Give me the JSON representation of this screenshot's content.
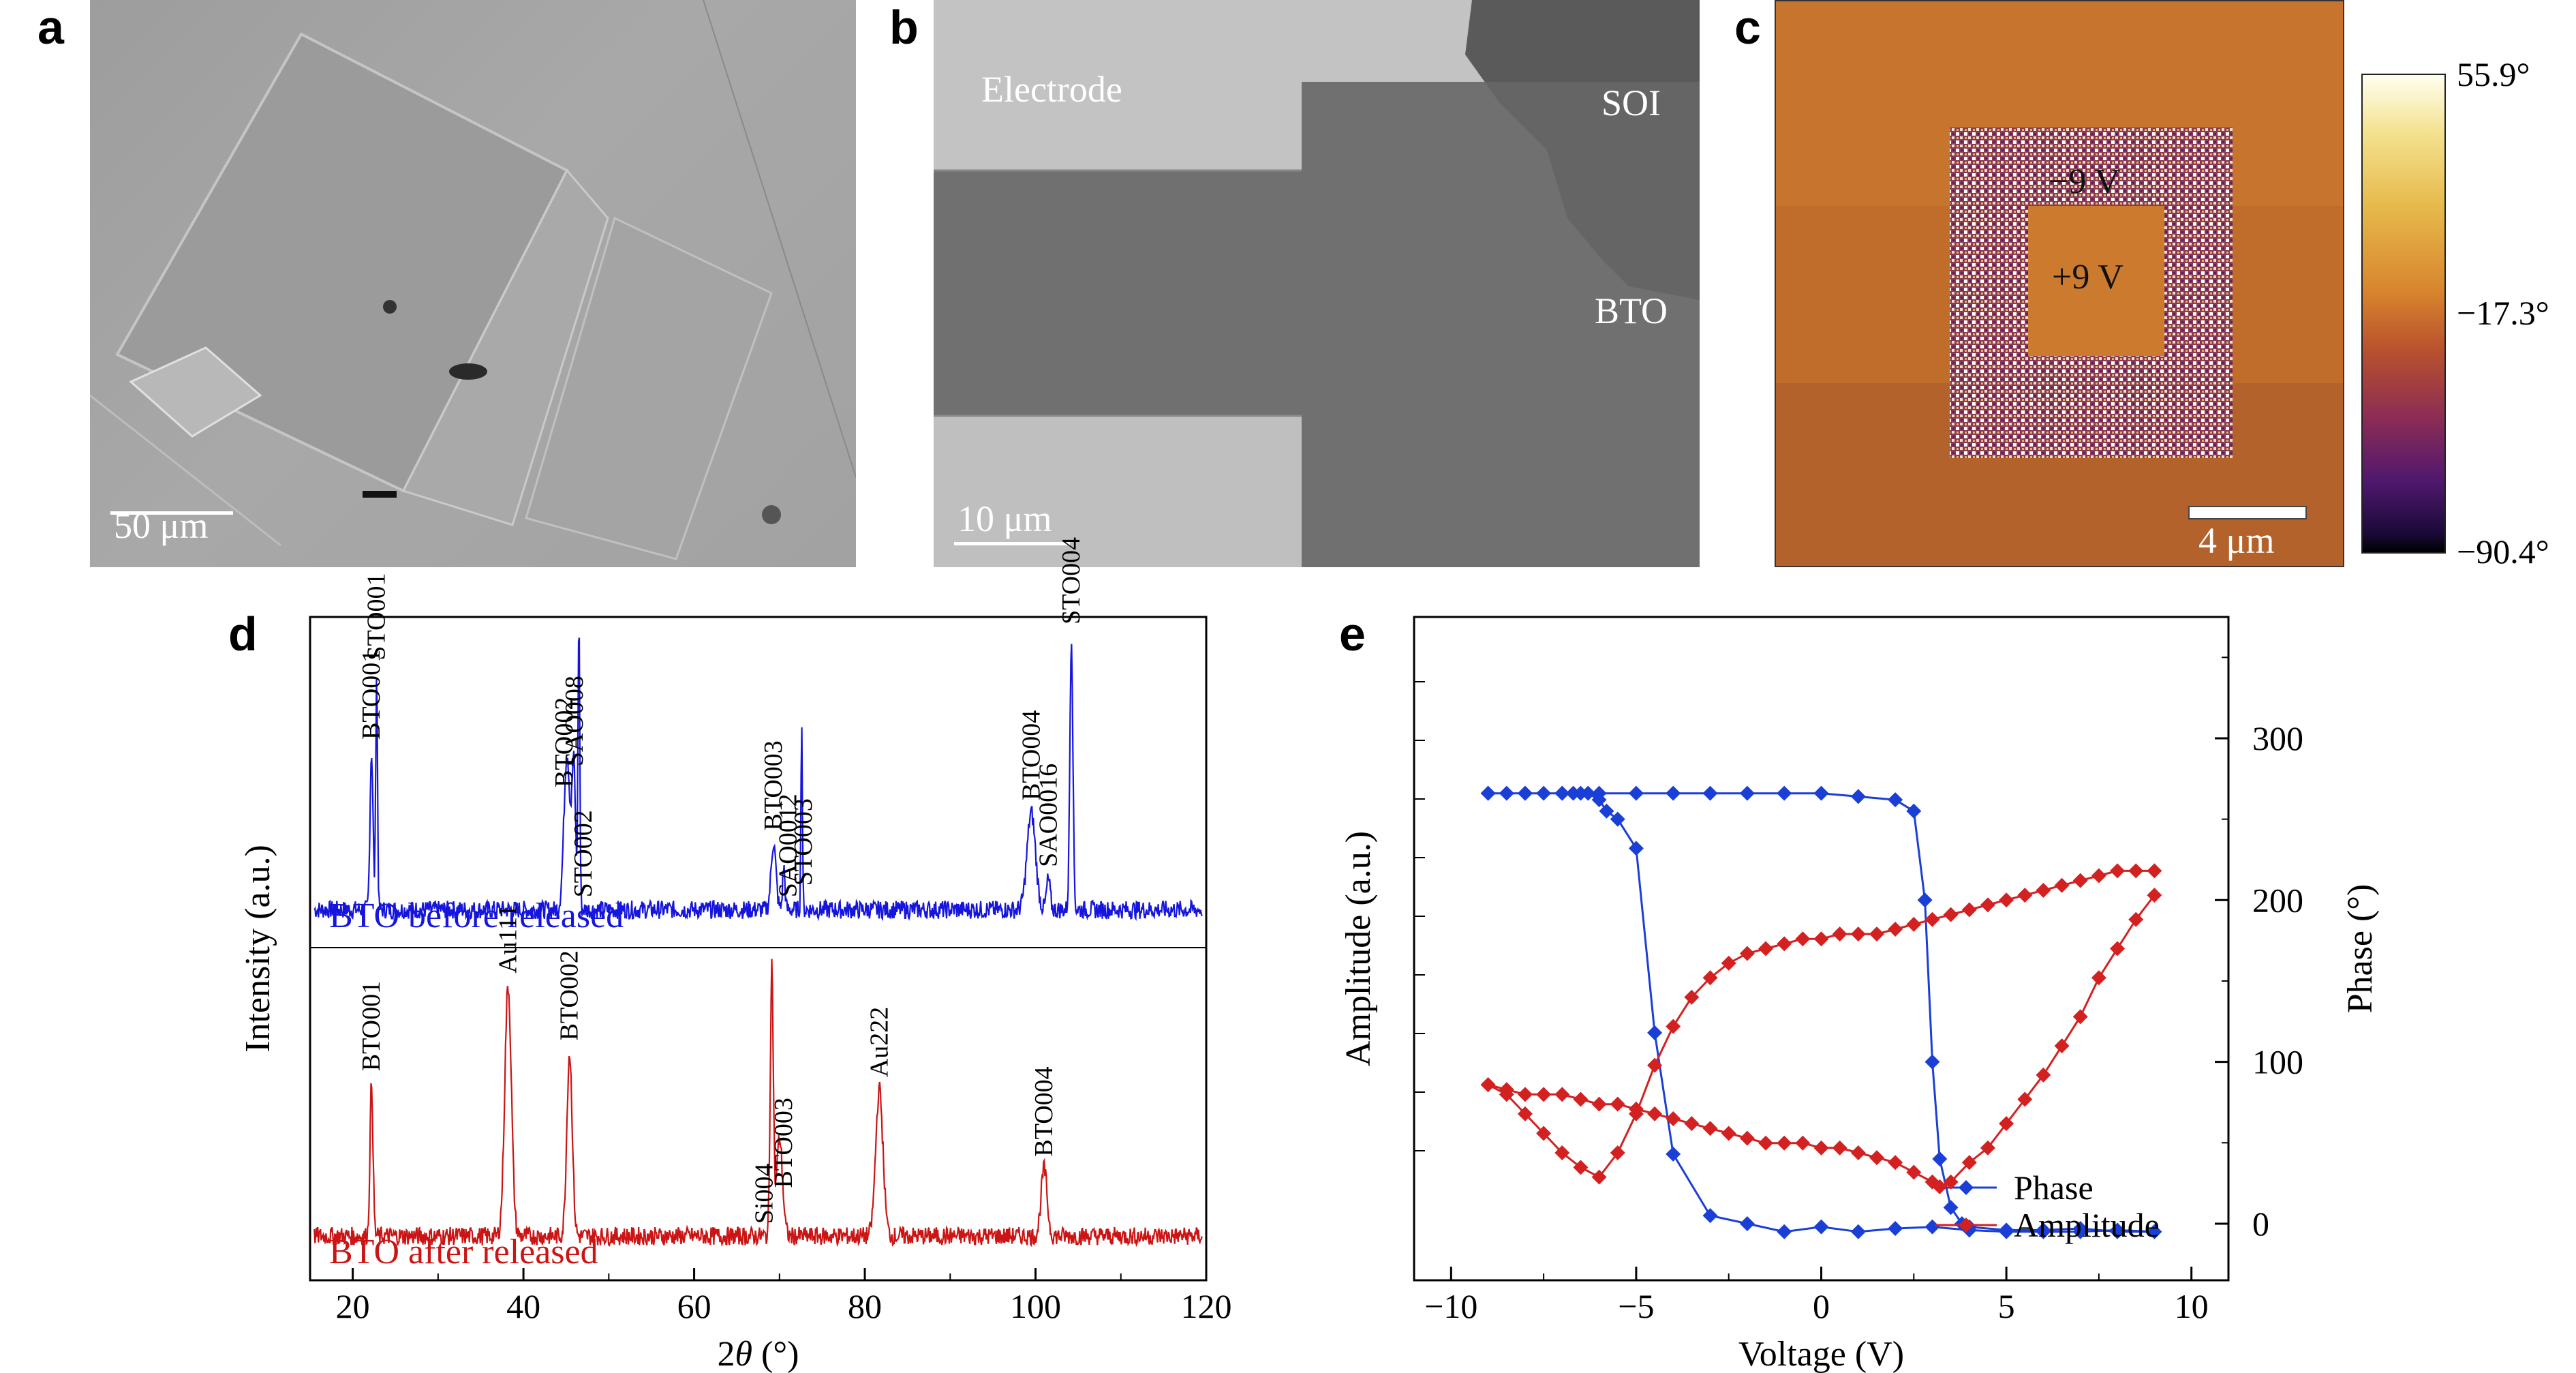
{
  "panel_letters": {
    "a": "a",
    "b": "b",
    "c": "c",
    "d": "d",
    "e": "e"
  },
  "panel_a": {
    "scale_bar": "50 μm"
  },
  "panel_b": {
    "electrode": "Electrode",
    "soi": "SOI",
    "bto": "BTO",
    "scale_bar": "10 μm"
  },
  "panel_c": {
    "neg_label": "−9 V",
    "pos_label": "+9 V",
    "scale_bar": "4 μm",
    "colorbar": {
      "max": "55.9°",
      "mid": "−17.3°",
      "min": "−90.4°"
    }
  },
  "chart_data": [
    {
      "type": "line",
      "panel": "d",
      "xlabel_prefix": "2",
      "xlabel_var": "θ",
      "xlabel_unit": " (°)",
      "ylabel": "Intensity (a.u.)",
      "xlim": [
        15,
        120
      ],
      "xticks": [
        20,
        40,
        60,
        80,
        100,
        120
      ],
      "series": [
        {
          "name": "BTO before released",
          "color": "#1515dd",
          "baseline": 0.08,
          "peaks": [
            {
              "x": 22.2,
              "y": 0.52,
              "w": 0.25
            },
            {
              "x": 22.8,
              "y": 0.78,
              "w": 0.15
            },
            {
              "x": 45.1,
              "y": 0.52,
              "w": 0.5
            },
            {
              "x": 45.9,
              "y": 0.46,
              "w": 0.3
            },
            {
              "x": 46.5,
              "y": 0.95,
              "w": 0.15
            },
            {
              "x": 69.3,
              "y": 0.22,
              "w": 0.4
            },
            {
              "x": 70.5,
              "y": 0.14,
              "w": 0.2
            },
            {
              "x": 72.6,
              "y": 0.62,
              "w": 0.12
            },
            {
              "x": 99.5,
              "y": 0.32,
              "w": 0.7
            },
            {
              "x": 101.5,
              "y": 0.1,
              "w": 0.3
            },
            {
              "x": 104.2,
              "y": 0.9,
              "w": 0.25
            }
          ],
          "annotations": [
            {
              "x": 22.2,
              "label": "BTO001"
            },
            {
              "x": 22.8,
              "label": "STO001"
            },
            {
              "x": 44.8,
              "label": "BTO002"
            },
            {
              "x": 46.0,
              "label": "SAO008"
            },
            {
              "x": 47.0,
              "label": "STO002"
            },
            {
              "x": 69.3,
              "label": "BTO003"
            },
            {
              "x": 71.0,
              "label": "SAO0012"
            },
            {
              "x": 72.8,
              "label": "STO003"
            },
            {
              "x": 99.5,
              "label": "BTO004"
            },
            {
              "x": 101.5,
              "label": "SAO0016"
            },
            {
              "x": 104.2,
              "label": "STO004"
            }
          ]
        },
        {
          "name": "BTO after released",
          "color": "#cc1414",
          "baseline": 0.1,
          "peaks": [
            {
              "x": 22.2,
              "y": 0.5,
              "w": 0.25
            },
            {
              "x": 38.2,
              "y": 0.82,
              "w": 0.55
            },
            {
              "x": 45.4,
              "y": 0.6,
              "w": 0.45
            },
            {
              "x": 69.1,
              "y": 0.88,
              "w": 0.25
            },
            {
              "x": 70.0,
              "y": 0.32,
              "w": 0.5
            },
            {
              "x": 81.7,
              "y": 0.48,
              "w": 0.6
            },
            {
              "x": 101.0,
              "y": 0.22,
              "w": 0.5
            }
          ],
          "annotations": [
            {
              "x": 22.2,
              "label": "BTO001"
            },
            {
              "x": 38.2,
              "label": "Au111"
            },
            {
              "x": 45.4,
              "label": "BTO002"
            },
            {
              "x": 68.2,
              "label": "Si004"
            },
            {
              "x": 70.5,
              "label": "BTO003"
            },
            {
              "x": 81.7,
              "label": "Au222"
            },
            {
              "x": 101.0,
              "label": "BTO004"
            }
          ]
        }
      ]
    },
    {
      "type": "line",
      "panel": "e",
      "xlabel": "Voltage (V)",
      "ylabel_left": "Amplitude (a.u.)",
      "ylabel_right": "Phase (°)",
      "xlim": [
        -11,
        11
      ],
      "xticks": [
        -10,
        -5,
        0,
        5,
        10
      ],
      "y2lim": [
        -35,
        375
      ],
      "y2ticks": [
        0,
        100,
        200,
        300
      ],
      "y1lim": [
        0,
        1
      ],
      "series": [
        {
          "name": "Phase",
          "color": "#1a3fd6",
          "marker": "diamond",
          "x": [
            -9,
            -8.5,
            -8,
            -7.5,
            -7,
            -6.7,
            -6.5,
            -6.3,
            -6.0,
            -5.8,
            -5.5,
            -5,
            -4.5,
            -4,
            -3,
            -2,
            -1,
            0,
            1,
            2,
            3,
            4,
            5,
            6,
            7,
            8,
            9,
            9,
            8,
            7,
            6,
            5,
            4,
            3.8,
            3.5,
            3.2,
            3.0,
            2.8,
            2.5,
            2,
            1,
            0,
            -1,
            -2,
            -3,
            -4,
            -5,
            -6,
            -7,
            -8,
            -9
          ],
          "y": [
            266,
            266,
            266,
            266,
            266,
            266,
            266,
            266,
            262,
            255,
            250,
            232,
            118,
            43,
            5,
            0,
            -5,
            -2,
            -5,
            -3,
            -2,
            -4,
            -5,
            -5,
            -5,
            -4,
            -5,
            -5,
            -5,
            -3,
            -4,
            -4,
            -2,
            0,
            10,
            40,
            100,
            200,
            255,
            262,
            264,
            266,
            266,
            266,
            266,
            266,
            266,
            266,
            266,
            266,
            266
          ]
        },
        {
          "name": "Amplitude",
          "color": "#d32121",
          "marker": "diamond",
          "x": [
            9,
            8.5,
            8,
            7.5,
            7,
            6.5,
            6,
            5.5,
            5,
            4.5,
            4,
            3.5,
            3.2,
            3.0,
            2.5,
            2,
            1.5,
            1,
            0.5,
            0,
            -0.5,
            -1,
            -1.5,
            -2,
            -2.5,
            -3,
            -3.5,
            -4,
            -4.5,
            -5,
            -5.5,
            -6,
            -6.5,
            -7,
            -7.5,
            -8,
            -8.5,
            -9,
            -9,
            -8.5,
            -8,
            -7.5,
            -7,
            -6.5,
            -6,
            -5.5,
            -5,
            -4.5,
            -4,
            -3.5,
            -3,
            -2.5,
            -2,
            -1.5,
            -1,
            -0.5,
            0,
            0.5,
            1,
            1.5,
            2,
            2.5,
            3,
            3.5,
            4,
            4.5,
            5,
            5.5,
            6,
            6.5,
            7,
            7.5,
            8,
            8.5,
            9
          ],
          "y": [
            0.61,
            0.56,
            0.5,
            0.44,
            0.36,
            0.3,
            0.24,
            0.19,
            0.14,
            0.09,
            0.06,
            0.02,
            0.01,
            0.02,
            0.04,
            0.06,
            0.07,
            0.08,
            0.09,
            0.09,
            0.1,
            0.1,
            0.1,
            0.11,
            0.12,
            0.13,
            0.14,
            0.15,
            0.16,
            0.17,
            0.18,
            0.18,
            0.19,
            0.2,
            0.2,
            0.2,
            0.21,
            0.22,
            0.22,
            0.2,
            0.16,
            0.12,
            0.08,
            0.05,
            0.03,
            0.08,
            0.16,
            0.26,
            0.34,
            0.4,
            0.44,
            0.47,
            0.49,
            0.5,
            0.51,
            0.52,
            0.52,
            0.53,
            0.53,
            0.53,
            0.54,
            0.55,
            0.56,
            0.57,
            0.58,
            0.59,
            0.6,
            0.61,
            0.62,
            0.63,
            0.64,
            0.65,
            0.66,
            0.66,
            0.66
          ]
        }
      ]
    }
  ]
}
